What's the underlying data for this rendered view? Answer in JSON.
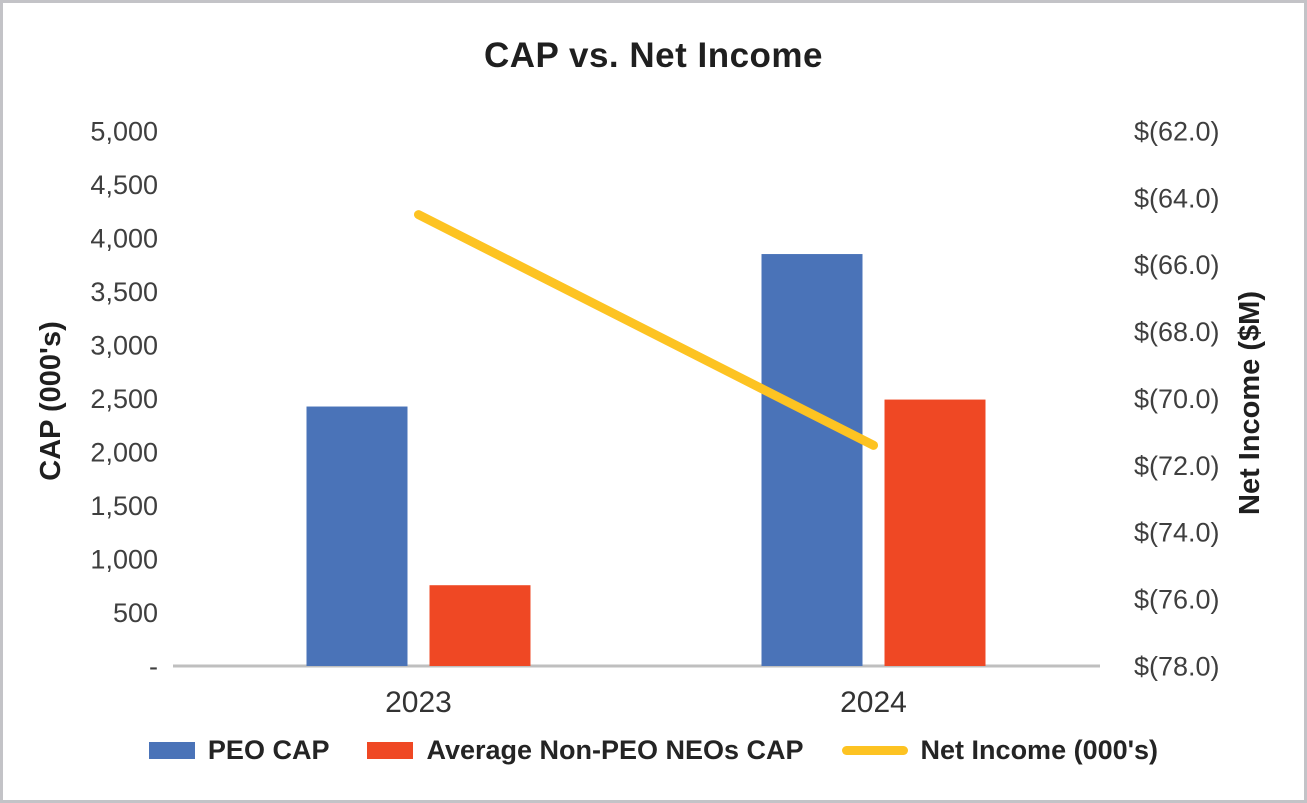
{
  "chart_data": {
    "type": "combo_bar_line",
    "title": "CAP vs. Net Income",
    "categories": [
      "2023",
      "2024"
    ],
    "series": [
      {
        "name": "PEO CAP",
        "type": "bar",
        "axis": "left",
        "color": "#4A73B8",
        "values": [
          2425,
          3850
        ]
      },
      {
        "name": "Average Non-PEO NEOs CAP",
        "type": "bar",
        "axis": "left",
        "color": "#EF4824",
        "values": [
          755,
          2490
        ]
      },
      {
        "name": "Net Income (000's)",
        "type": "line",
        "axis": "right",
        "color": "#FDC322",
        "values": [
          -64.5,
          -71.4
        ]
      }
    ],
    "left_axis": {
      "label": "CAP (000's)",
      "min": 0,
      "max": 5000,
      "step": 500,
      "tick_labels_top_to_bottom": [
        "5,000",
        "4,500",
        "4,000",
        "3,500",
        "3,000",
        "2,500",
        "2,000",
        "1,500",
        "1,000",
        "500",
        "-"
      ]
    },
    "right_axis": {
      "label": "Net Income ($M)",
      "min": -78,
      "max": -62,
      "step": 2,
      "tick_labels_top_to_bottom": [
        "$(62.0)",
        "$(64.0)",
        "$(66.0)",
        "$(68.0)",
        "$(70.0)",
        "$(72.0)",
        "$(74.0)",
        "$(76.0)",
        "$(78.0)"
      ]
    },
    "legend_position": "bottom",
    "grid": "off",
    "colors": {
      "axis_line": "#BFBFBF",
      "tick_text": "#3F3F3F",
      "heading_text": "#1F1F1F",
      "frame_border": "#C3C3C7"
    }
  }
}
